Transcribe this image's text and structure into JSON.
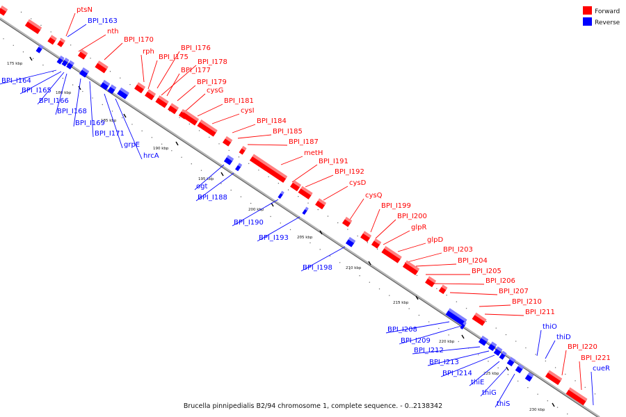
{
  "caption": "Brucella pinnipedialis B2/94 chromosome 1, complete sequence. - 0..2138342",
  "legend": [
    {
      "label": "Forward",
      "color": "#ff0000"
    },
    {
      "label": "Reverse",
      "color": "#0000ff"
    }
  ],
  "colors": {
    "forward": "#ff0000",
    "reverse": "#0000ff",
    "backbone": "#999999"
  },
  "ticks": [
    "175 kbp",
    "180 kbp",
    "185 kbp",
    "190 kbp",
    "195 kbp",
    "200 kbp",
    "205 kbp",
    "210 kbp",
    "215 kbp",
    "220 kbp",
    "225 kbp",
    "230 kbp"
  ],
  "forward_labels": [
    "ptsN",
    "nth",
    "BPI_I170",
    "rph",
    "BPI_I175",
    "BPI_I176",
    "BPI_I177",
    "BPI_I178",
    "BPI_I179",
    "cysG",
    "BPI_I181",
    "cysI",
    "BPI_I184",
    "BPI_I185",
    "BPI_I187",
    "metH",
    "BPI_I191",
    "BPI_I192",
    "cysD",
    "cysQ",
    "BPI_I199",
    "BPI_I200",
    "glpR",
    "glpD",
    "BPI_I203",
    "BPI_I204",
    "BPI_I205",
    "BPI_I206",
    "BPI_I207",
    "BPI_I210",
    "BPI_I211",
    "BPI_I220",
    "BPI_I221"
  ],
  "reverse_labels": [
    "BPI_I163",
    "BPI_I164",
    "BPI_I165",
    "BPI_I166",
    "BPI_I168",
    "BPI_I169",
    "BPI_I171",
    "grpE",
    "hrcA",
    "ogt",
    "BPI_I188",
    "BPI_I190",
    "BPI_I193",
    "BPI_I198",
    "BPI_I208",
    "BPI_I209",
    "BPI_I212",
    "BPI_I213",
    "BPI_I214",
    "thiE",
    "thiG",
    "thiS",
    "thiO",
    "thiD",
    "cueR"
  ]
}
